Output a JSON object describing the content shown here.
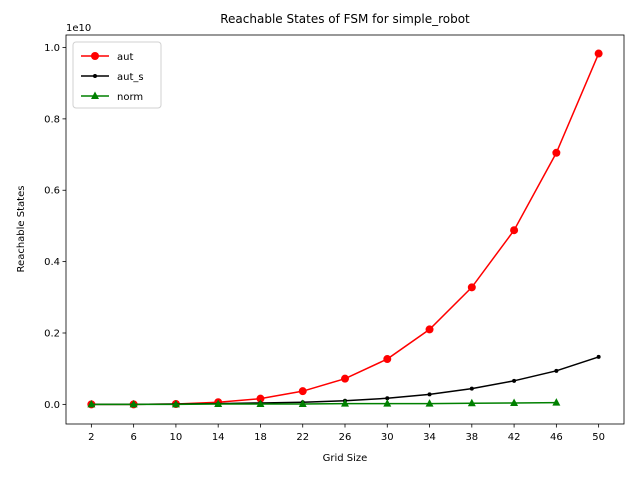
{
  "chart_data": {
    "type": "line",
    "title": "Reachable States of FSM for simple_robot",
    "xlabel": "Grid Size",
    "ylabel": "Reachable States",
    "y_offset_label": "1e10",
    "x": [
      2,
      6,
      10,
      14,
      18,
      22,
      26,
      30,
      34,
      38,
      42,
      46,
      50
    ],
    "series": [
      {
        "name": "aut",
        "color": "#ff0000",
        "marker": "o",
        "values": [
          0,
          0,
          0.001,
          0.006,
          0.016,
          0.037,
          0.072,
          0.127,
          0.21,
          0.328,
          0.488,
          0.705,
          0.983
        ]
      },
      {
        "name": "aut_s",
        "color": "#000000",
        "marker": ".",
        "values": [
          0,
          0,
          0.001,
          0.002,
          0.004,
          0.006,
          0.01,
          0.017,
          0.028,
          0.044,
          0.066,
          0.094,
          0.133
        ]
      },
      {
        "name": "norm",
        "color": "#008000",
        "marker": "^",
        "values": [
          0,
          0,
          0,
          0.001,
          0.001,
          0.001,
          0.002,
          0.002,
          0.002,
          0.003,
          0.004,
          0.005,
          null
        ]
      }
    ],
    "xlim": [
      -0.4,
      52.4
    ],
    "ylim": [
      -0.055,
      1.035
    ],
    "xticks": [
      2,
      6,
      10,
      14,
      18,
      22,
      26,
      30,
      34,
      38,
      42,
      46,
      50
    ],
    "yticks": [
      {
        "value": 0,
        "label": "0.0"
      },
      0.2,
      0.4,
      0.6,
      0.8,
      {
        "value": 1,
        "label": "1.0"
      }
    ],
    "grid": false,
    "legend": "upper left"
  }
}
